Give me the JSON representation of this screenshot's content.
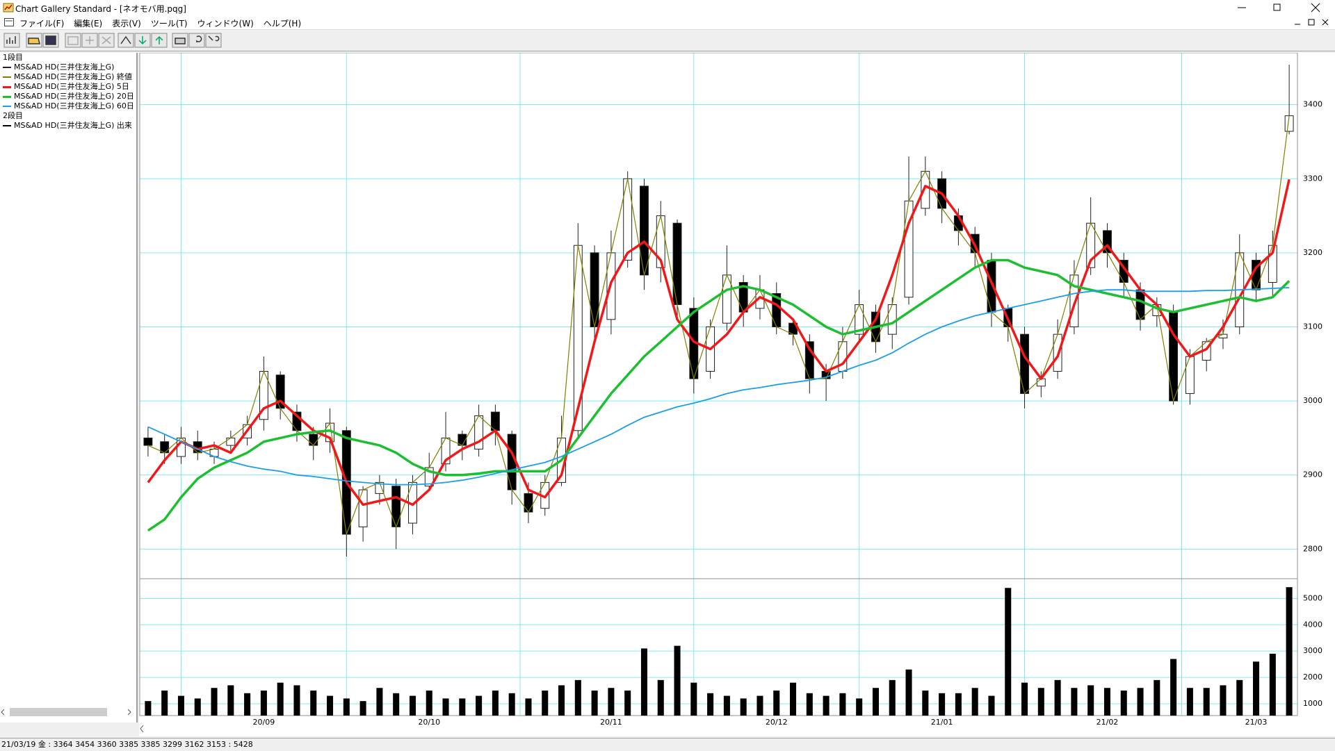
{
  "window": {
    "title": "Chart Gallery Standard - [ネオモバ用.pqg]"
  },
  "menu": [
    "ファイル(F)",
    "編集(E)",
    "表示(V)",
    "ツール(T)",
    "ウィンドウ(W)",
    "ヘルプ(H)"
  ],
  "chart_data": [
    {
      "type": "candlestick",
      "panel_label": "1段目",
      "ylim": [
        2760,
        3470
      ],
      "yticks": [
        2800,
        2900,
        3000,
        3100,
        3200,
        3300,
        3400
      ],
      "grid": true,
      "grid_color": "#80eaf2",
      "candles": {
        "name": "MS&AD HD(三井住友海上G)",
        "color": "#202020",
        "up_color": "#ffffff",
        "down_color": "#000000",
        "open": [
          2950,
          2945,
          2925,
          2945,
          2925,
          2940,
          2950,
          2975,
          3035,
          2985,
          2955,
          2945,
          2960,
          2830,
          2875,
          2885,
          2835,
          2885,
          2915,
          2955,
          2935,
          2985,
          2955,
          2875,
          2855,
          2890,
          2960,
          3200,
          3110,
          3190,
          3290,
          3180,
          3240,
          3125,
          3040,
          3105,
          3160,
          3125,
          3145,
          3105,
          3080,
          3040,
          3040,
          3090,
          3120,
          3090,
          3140,
          3260,
          3300,
          3250,
          3225,
          3190,
          3125,
          3090,
          3020,
          3040,
          3100,
          3180,
          3230,
          3190,
          3150,
          3115,
          3120,
          3010,
          3055,
          3085,
          3100,
          3190,
          3160,
          3364
        ],
        "high": [
          2965,
          2955,
          2965,
          2960,
          2945,
          2960,
          2980,
          3060,
          3040,
          2995,
          2965,
          2990,
          2965,
          2885,
          2900,
          2895,
          2900,
          2930,
          2985,
          2960,
          2995,
          2995,
          2960,
          2890,
          2900,
          2980,
          3240,
          3210,
          3230,
          3310,
          3300,
          3270,
          3245,
          3140,
          3110,
          3210,
          3170,
          3170,
          3160,
          3110,
          3090,
          3050,
          3100,
          3150,
          3130,
          3140,
          3330,
          3330,
          3310,
          3260,
          3235,
          3200,
          3130,
          3100,
          3040,
          3110,
          3190,
          3275,
          3240,
          3200,
          3160,
          3140,
          3130,
          3070,
          3085,
          3110,
          3225,
          3200,
          3230,
          3454
        ],
        "low": [
          2925,
          2915,
          2915,
          2920,
          2915,
          2930,
          2940,
          2960,
          2975,
          2945,
          2920,
          2930,
          2790,
          2810,
          2860,
          2800,
          2820,
          2880,
          2905,
          2920,
          2925,
          2940,
          2860,
          2835,
          2845,
          2885,
          2950,
          3080,
          3090,
          3180,
          3150,
          3160,
          3110,
          3010,
          3030,
          3095,
          3100,
          3110,
          3090,
          3075,
          3010,
          3000,
          3030,
          3080,
          3065,
          3070,
          3130,
          3250,
          3240,
          3210,
          3180,
          3100,
          3080,
          2990,
          3005,
          3030,
          3090,
          3170,
          3180,
          3140,
          3095,
          3100,
          2995,
          2995,
          3040,
          3070,
          3090,
          3135,
          3140,
          3360
        ],
        "close": [
          2940,
          2930,
          2950,
          2930,
          2935,
          2950,
          2968,
          3040,
          2990,
          2960,
          2940,
          2970,
          2820,
          2880,
          2890,
          2830,
          2890,
          2910,
          2950,
          2940,
          2980,
          2960,
          2880,
          2850,
          2890,
          2950,
          3210,
          3100,
          3200,
          3300,
          3170,
          3250,
          3130,
          3030,
          3100,
          3170,
          3120,
          3150,
          3100,
          3090,
          3030,
          3030,
          3080,
          3130,
          3080,
          3130,
          3270,
          3310,
          3260,
          3230,
          3200,
          3120,
          3100,
          3010,
          3030,
          3090,
          3170,
          3240,
          3200,
          3160,
          3110,
          3130,
          3000,
          3060,
          3080,
          3090,
          3200,
          3150,
          3210,
          3385
        ]
      },
      "close_line": {
        "name": "MS&AD HD(三井住友海上G) 終値",
        "color": "#808000"
      },
      "series": [
        {
          "name": "MS&AD HD(三井住友海上G) 5日",
          "color": "#f01818",
          "width": 3.5,
          "values": [
            2890,
            2920,
            2945,
            2935,
            2940,
            2930,
            2960,
            2990,
            3000,
            2980,
            2960,
            2950,
            2890,
            2860,
            2865,
            2870,
            2860,
            2880,
            2920,
            2935,
            2945,
            2960,
            2930,
            2880,
            2870,
            2900,
            2990,
            3080,
            3160,
            3200,
            3215,
            3190,
            3110,
            3080,
            3070,
            3090,
            3120,
            3140,
            3130,
            3110,
            3070,
            3040,
            3050,
            3080,
            3110,
            3170,
            3240,
            3290,
            3280,
            3250,
            3210,
            3160,
            3110,
            3060,
            3030,
            3060,
            3130,
            3190,
            3210,
            3180,
            3150,
            3130,
            3090,
            3060,
            3070,
            3100,
            3140,
            3180,
            3200,
            3299
          ]
        },
        {
          "name": "MS&AD HD(三井住友海上G) 20日",
          "color": "#1cbf30",
          "width": 3.5,
          "values": [
            2825,
            2840,
            2870,
            2895,
            2910,
            2920,
            2930,
            2945,
            2950,
            2955,
            2958,
            2960,
            2950,
            2945,
            2940,
            2930,
            2915,
            2905,
            2900,
            2900,
            2902,
            2905,
            2905,
            2905,
            2905,
            2920,
            2950,
            2980,
            3010,
            3035,
            3060,
            3080,
            3100,
            3120,
            3135,
            3150,
            3155,
            3150,
            3140,
            3130,
            3115,
            3100,
            3090,
            3095,
            3100,
            3105,
            3120,
            3135,
            3150,
            3165,
            3180,
            3190,
            3190,
            3180,
            3175,
            3170,
            3155,
            3150,
            3145,
            3140,
            3135,
            3125,
            3120,
            3125,
            3130,
            3135,
            3140,
            3135,
            3140,
            3162
          ]
        },
        {
          "name": "MS&AD HD(三井住友海上G) 60日",
          "color": "#1c9ee6",
          "width": 1.8,
          "values": [
            2965,
            2955,
            2945,
            2935,
            2925,
            2918,
            2912,
            2908,
            2905,
            2900,
            2898,
            2895,
            2892,
            2890,
            2888,
            2887,
            2887,
            2888,
            2890,
            2893,
            2897,
            2902,
            2907,
            2912,
            2917,
            2925,
            2935,
            2945,
            2955,
            2967,
            2978,
            2985,
            2992,
            2997,
            3003,
            3010,
            3015,
            3018,
            3022,
            3025,
            3028,
            3032,
            3040,
            3048,
            3055,
            3065,
            3078,
            3090,
            3100,
            3108,
            3115,
            3120,
            3125,
            3130,
            3135,
            3140,
            3145,
            3148,
            3150,
            3150,
            3148,
            3148,
            3148,
            3148,
            3149,
            3149,
            3150,
            3151,
            3152,
            3153
          ]
        }
      ]
    },
    {
      "type": "bar",
      "panel_label": "2段目",
      "categories": [
        null,
        null,
        null,
        null,
        null,
        null,
        null,
        "20/09",
        null,
        null,
        null,
        null,
        null,
        null,
        null,
        null,
        null,
        "20/10",
        null,
        null,
        null,
        null,
        null,
        null,
        null,
        null,
        null,
        null,
        "20/11",
        null,
        null,
        null,
        null,
        null,
        null,
        null,
        null,
        null,
        "20/12",
        null,
        null,
        null,
        null,
        null,
        null,
        null,
        null,
        null,
        "21/01",
        null,
        null,
        null,
        null,
        null,
        null,
        null,
        null,
        null,
        "21/02",
        null,
        null,
        null,
        null,
        null,
        null,
        null,
        null,
        "21/03",
        null,
        null
      ],
      "ylim": [
        550,
        5750
      ],
      "yticks": [
        1000,
        2000,
        3000,
        4000,
        5000
      ],
      "grid": true,
      "series": [
        {
          "name": "MS&AD HD(三井住友海上G) 出来",
          "color": "#000000",
          "values": [
            1100,
            1500,
            1300,
            1200,
            1600,
            1700,
            1400,
            1500,
            1800,
            1700,
            1500,
            1300,
            1200,
            1100,
            1600,
            1400,
            1300,
            1500,
            1200,
            1200,
            1300,
            1500,
            1400,
            1200,
            1500,
            1700,
            1900,
            1500,
            1600,
            1500,
            3100,
            1900,
            3200,
            1800,
            1400,
            1300,
            1200,
            1300,
            1500,
            1800,
            1400,
            1300,
            1400,
            1200,
            1600,
            1900,
            2300,
            1500,
            1400,
            1400,
            1600,
            1300,
            5400,
            1800,
            1600,
            1900,
            1600,
            1700,
            1600,
            1500,
            1600,
            1900,
            2700,
            1600,
            1600,
            1700,
            1900,
            2600,
            2900,
            5428
          ]
        }
      ]
    }
  ],
  "status_bar": "21/03/19 金 : 3364 3454 3360 3385  3385 3299 3162 3153 : 5428"
}
